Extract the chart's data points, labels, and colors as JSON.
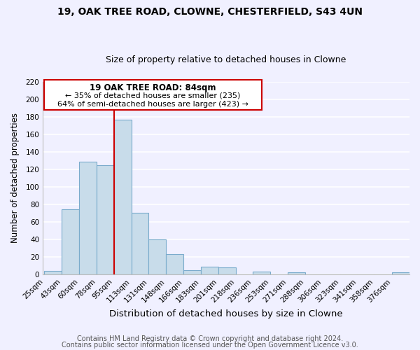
{
  "title_line1": "19, OAK TREE ROAD, CLOWNE, CHESTERFIELD, S43 4UN",
  "title_line2": "Size of property relative to detached houses in Clowne",
  "xlabel": "Distribution of detached houses by size in Clowne",
  "ylabel": "Number of detached properties",
  "bar_color": "#c8dcea",
  "bar_edge_color": "#7aabcc",
  "categories": [
    "25sqm",
    "43sqm",
    "60sqm",
    "78sqm",
    "95sqm",
    "113sqm",
    "131sqm",
    "148sqm",
    "166sqm",
    "183sqm",
    "201sqm",
    "218sqm",
    "236sqm",
    "253sqm",
    "271sqm",
    "288sqm",
    "306sqm",
    "323sqm",
    "341sqm",
    "358sqm",
    "376sqm"
  ],
  "values": [
    4,
    74,
    129,
    125,
    177,
    70,
    40,
    23,
    5,
    9,
    8,
    0,
    3,
    0,
    2,
    0,
    0,
    0,
    0,
    0,
    2
  ],
  "ylim": [
    0,
    220
  ],
  "yticks": [
    0,
    20,
    40,
    60,
    80,
    100,
    120,
    140,
    160,
    180,
    200,
    220
  ],
  "property_line_color": "#cc0000",
  "annotation_box_text_line1": "19 OAK TREE ROAD: 84sqm",
  "annotation_box_text_line2": "← 35% of detached houses are smaller (235)",
  "annotation_box_text_line3": "64% of semi-detached houses are larger (423) →",
  "annotation_box_color": "#ffffff",
  "annotation_box_edge_color": "#cc0000",
  "footer_line1": "Contains HM Land Registry data © Crown copyright and database right 2024.",
  "footer_line2": "Contains public sector information licensed under the Open Government Licence v3.0.",
  "background_color": "#f0f0ff",
  "grid_color": "#ffffff",
  "title_fontsize": 10,
  "subtitle_fontsize": 9,
  "xlabel_fontsize": 9.5,
  "ylabel_fontsize": 8.5,
  "tick_fontsize": 7.5,
  "footer_fontsize": 7,
  "annotation_fontsize_title": 8.5,
  "annotation_fontsize_body": 8
}
